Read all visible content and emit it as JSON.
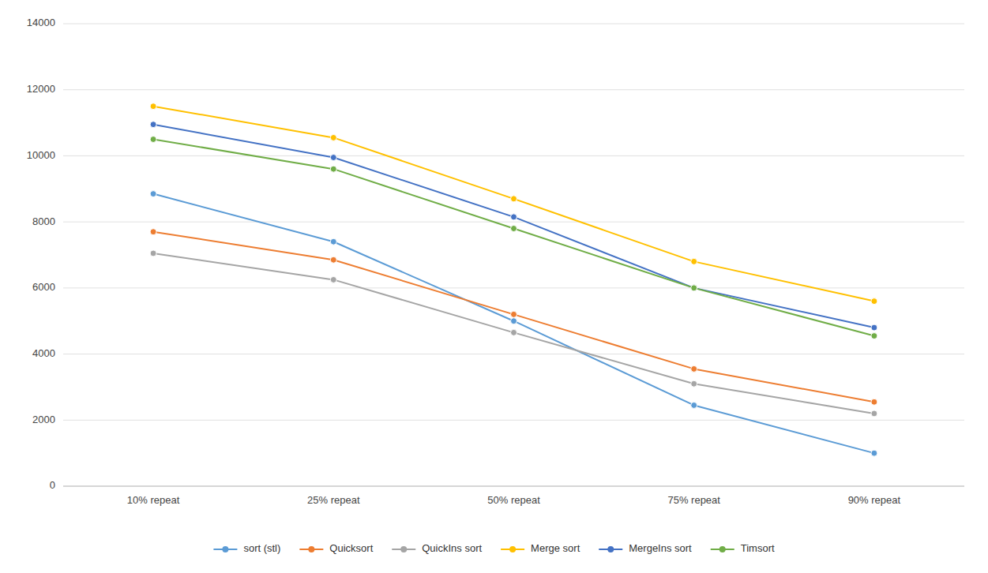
{
  "chart_data": {
    "type": "line",
    "categories": [
      "10% repeat",
      "25% repeat",
      "50% repeat",
      "75% repeat",
      "90% repeat"
    ],
    "series": [
      {
        "name": "sort (stl)",
        "color": "#5B9BD5",
        "values": [
          8850,
          7400,
          5000,
          2450,
          1000
        ]
      },
      {
        "name": "Quicksort",
        "color": "#ED7D31",
        "values": [
          7700,
          6850,
          5200,
          3550,
          2550
        ]
      },
      {
        "name": "QuickIns sort",
        "color": "#A5A5A5",
        "values": [
          7050,
          6250,
          4650,
          3100,
          2200
        ]
      },
      {
        "name": "Merge sort",
        "color": "#FFC000",
        "values": [
          11500,
          10550,
          8700,
          6800,
          5600
        ]
      },
      {
        "name": "MergeIns sort",
        "color": "#4472C4",
        "values": [
          10950,
          9950,
          8150,
          6000,
          4800
        ]
      },
      {
        "name": "Timsort",
        "color": "#70AD47",
        "values": [
          10500,
          9600,
          7800,
          6000,
          4550
        ]
      }
    ],
    "ylim": [
      0,
      14000
    ],
    "yticks": [
      0,
      2000,
      4000,
      6000,
      8000,
      10000,
      12000,
      14000
    ],
    "grid": true,
    "legend": "bottom",
    "marker": "circle"
  }
}
